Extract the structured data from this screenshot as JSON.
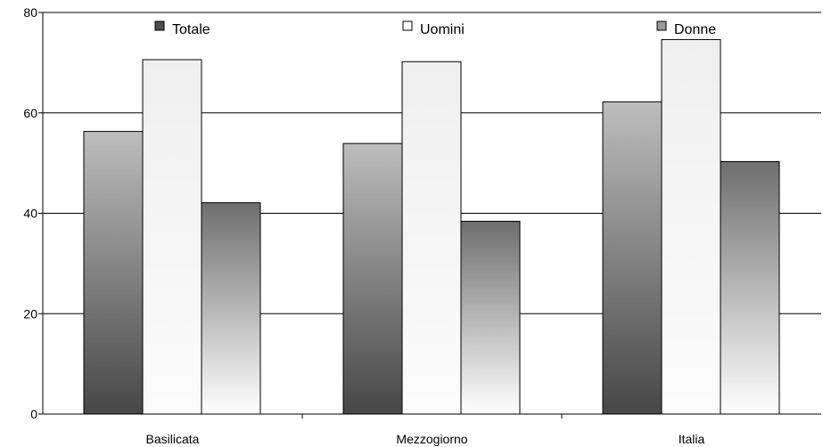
{
  "chart_data": {
    "type": "bar",
    "categories": [
      "Basilicata",
      "Mezzogiorno",
      "Italia"
    ],
    "series": [
      {
        "name": "Totale",
        "values": [
          56.3,
          53.9,
          62.2
        ]
      },
      {
        "name": "Uomini",
        "values": [
          70.6,
          70.2,
          74.6
        ]
      },
      {
        "name": "Donne",
        "values": [
          42.1,
          38.4,
          50.3
        ]
      }
    ],
    "title": "",
    "xlabel": "",
    "ylabel": "",
    "ylim": [
      0,
      80
    ],
    "yticks": [
      0,
      20,
      40,
      60,
      80
    ],
    "grid": "horizontal",
    "legend_position": "top"
  }
}
